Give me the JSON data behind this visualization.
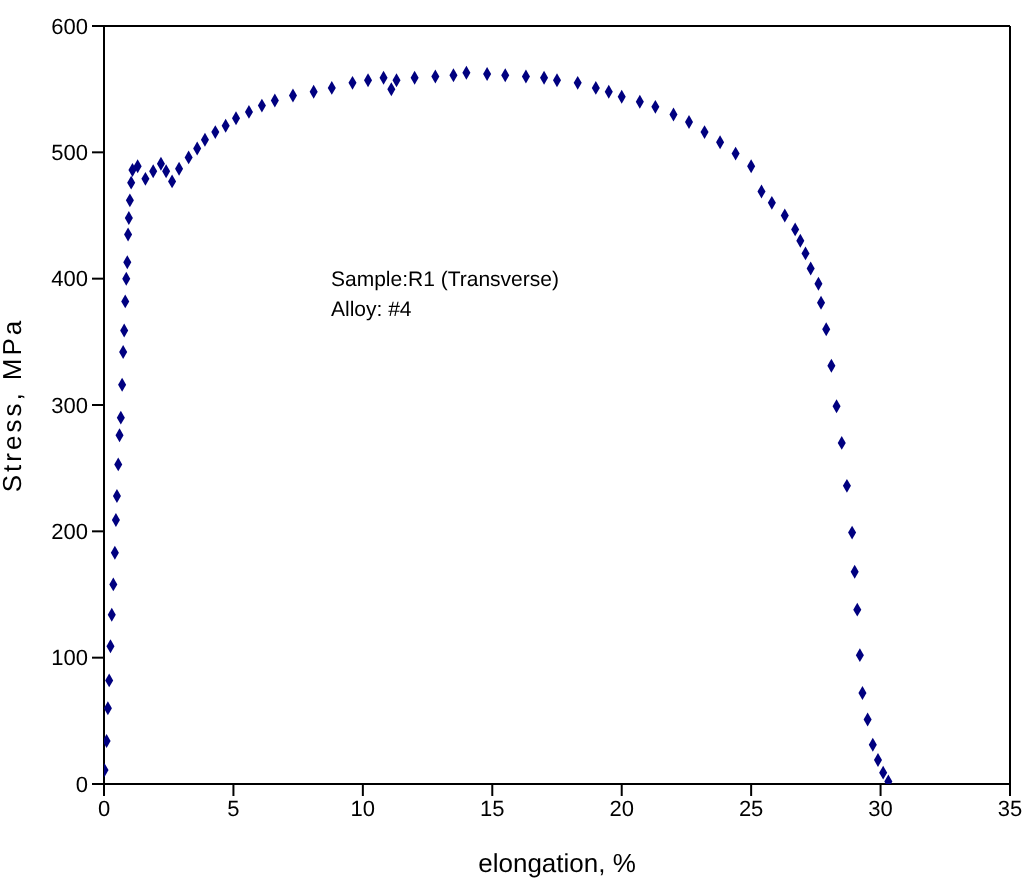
{
  "chart_data": {
    "type": "scatter",
    "xlabel": "elongation, %",
    "ylabel": "Stress, MPa",
    "annotations": [
      "Sample:R1 (Transverse)",
      "Alloy: #4"
    ],
    "marker": "diamond",
    "xlim": [
      0,
      35
    ],
    "xticks": [
      0,
      5,
      10,
      15,
      20,
      25,
      30,
      35
    ],
    "ylim": [
      0,
      600
    ],
    "yticks": [
      0,
      100,
      200,
      300,
      400,
      500,
      600
    ],
    "series": [
      {
        "color": "#000080",
        "x": [
          0.02,
          0.1,
          0.15,
          0.2,
          0.25,
          0.3,
          0.36,
          0.42,
          0.46,
          0.5,
          0.55,
          0.6,
          0.65,
          0.7,
          0.74,
          0.78,
          0.82,
          0.86,
          0.9,
          0.93,
          0.96,
          1.0,
          1.05,
          1.1,
          1.3,
          1.6,
          1.9,
          2.2,
          2.4,
          2.63,
          2.9,
          3.27,
          3.6,
          3.9,
          4.3,
          4.7,
          5.1,
          5.6,
          6.1,
          6.6,
          7.3,
          8.1,
          8.8,
          9.6,
          10.2,
          10.8,
          11.1,
          11.3,
          12,
          12.8,
          13.5,
          14,
          14.8,
          15.5,
          16.3,
          17,
          17.5,
          18.3,
          19,
          19.5,
          20,
          20.7,
          21.3,
          22,
          22.6,
          23.2,
          23.8,
          24.4,
          25,
          25.4,
          25.8,
          26.3,
          26.7,
          26.9,
          27.1,
          27.3,
          27.6,
          27.7,
          27.9,
          28.1,
          28.3,
          28.5,
          28.7,
          28.9,
          29.0,
          29.1,
          29.2,
          29.3,
          29.5,
          29.7,
          29.9,
          30.1,
          30.3
        ],
        "values": [
          11,
          34,
          60,
          82,
          109,
          134,
          158,
          183,
          209,
          228,
          253,
          276,
          290,
          316,
          342,
          359,
          382,
          400,
          413,
          435,
          448,
          462,
          476,
          486,
          489,
          479,
          485,
          491,
          485,
          477,
          487,
          496,
          503,
          510,
          516,
          521,
          527,
          532,
          537,
          541,
          545,
          548,
          551,
          555,
          557,
          559,
          550,
          557,
          559,
          560,
          561,
          563,
          562,
          561,
          560,
          559,
          557,
          555,
          551,
          548,
          544,
          540,
          536,
          530,
          524,
          516,
          508,
          499,
          489,
          469,
          460,
          450,
          439,
          430,
          420,
          408,
          396,
          381,
          360,
          331,
          299,
          270,
          236,
          199,
          168,
          138,
          102,
          72,
          51,
          31,
          19,
          9,
          2
        ]
      }
    ]
  }
}
